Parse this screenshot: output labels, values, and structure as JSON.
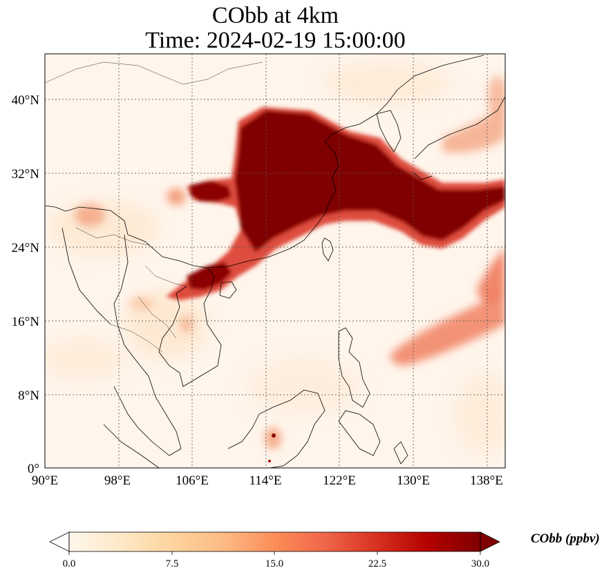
{
  "title": {
    "line1": "CObb at 4km",
    "line2": "Time: 2024-02-19 15:00:00"
  },
  "map": {
    "lon_range": [
      90,
      140
    ],
    "lat_range": [
      0,
      45
    ],
    "lon_ticks": [
      "90°E",
      "98°E",
      "106°E",
      "114°E",
      "122°E",
      "130°E",
      "138°E"
    ],
    "lat_ticks": [
      "0°",
      "8°N",
      "16°N",
      "24°N",
      "32°N",
      "40°N"
    ],
    "gridlines": "dotted",
    "background_color": "#fff5eb"
  },
  "colorbar": {
    "label": "CObb (ppbv)",
    "ticks": [
      "0.0",
      "7.5",
      "15.0",
      "22.5",
      "30.0"
    ],
    "min": 0,
    "max": 30,
    "extend": "both",
    "colormap": "OrRd",
    "colors": [
      "#fff7ec",
      "#fee8c8",
      "#fdd49e",
      "#fdbb84",
      "#fc8d59",
      "#ef6548",
      "#d7301f",
      "#b30000",
      "#7f0000"
    ]
  }
}
